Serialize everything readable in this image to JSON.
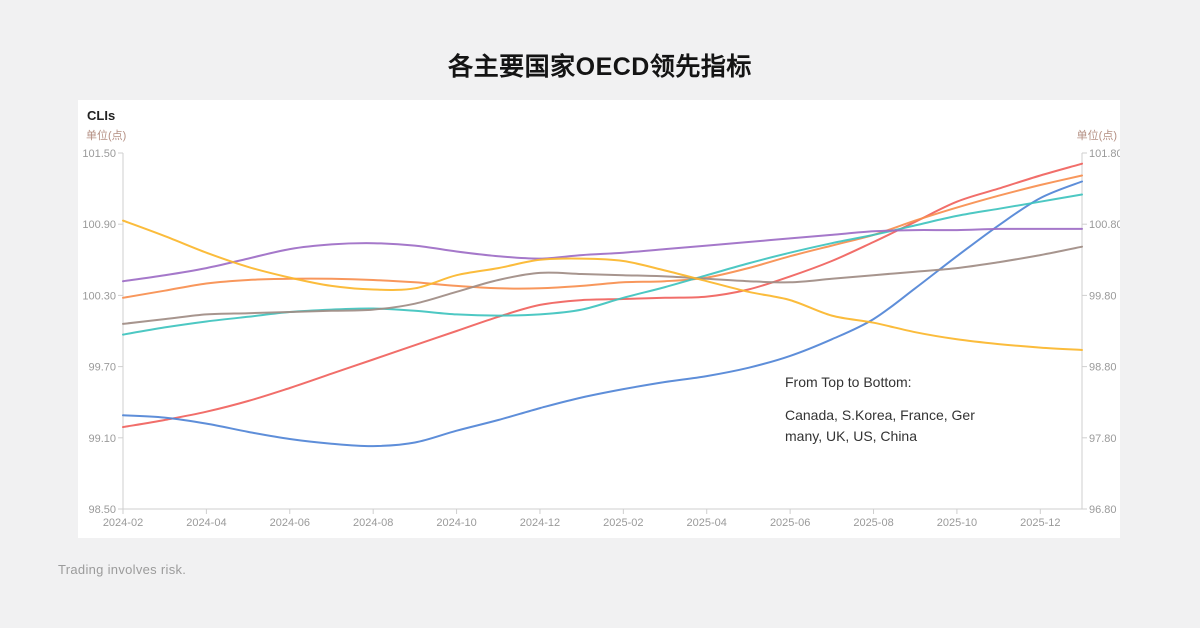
{
  "page": {
    "title": "各主要国家OECD领先指标",
    "footer": "Trading involves risk."
  },
  "panel": {
    "heading": "CLIs",
    "unit_left": "单位(点)",
    "unit_right": "单位(点)"
  },
  "annotation": {
    "intro": "From Top to Bottom:",
    "countries": "Canada, S.Korea, France, Germany, UK, US, China"
  },
  "chart_data": {
    "type": "line",
    "title": "各主要国家OECD领先指标",
    "grid": false,
    "legend_position": "none",
    "x": [
      "2024-02",
      "2024-03",
      "2024-04",
      "2024-05",
      "2024-06",
      "2024-07",
      "2024-08",
      "2024-09",
      "2024-10",
      "2024-11",
      "2024-12",
      "2025-01",
      "2025-02",
      "2025-03",
      "2025-04",
      "2025-05",
      "2025-06",
      "2025-07",
      "2025-08",
      "2025-09",
      "2025-10",
      "2025-11",
      "2025-12",
      "2026-01"
    ],
    "x_tick_labels": [
      "2024-02",
      "2024-04",
      "2024-06",
      "2024-08",
      "2024-10",
      "2024-12",
      "2025-02",
      "2025-04",
      "2025-06",
      "2025-08",
      "2025-10",
      "2025-12"
    ],
    "left_axis": {
      "label": "单位(点)",
      "range": [
        98.5,
        101.5
      ],
      "tick_labels": [
        "101.50",
        "100.90",
        "100.30",
        "99.70",
        "99.10",
        "98.50"
      ]
    },
    "right_axis": {
      "label": "单位(点)",
      "range": [
        96.8,
        101.8
      ],
      "tick_labels": [
        "101.80",
        "100.80",
        "99.80",
        "98.80",
        "97.80",
        "96.80"
      ]
    },
    "axis_color": "#cfcfcf",
    "tick_text_color": "#9a9a9a",
    "series": [
      {
        "name": "Canada",
        "color": "#F0625D",
        "values": [
          99.19,
          99.25,
          99.32,
          99.41,
          99.52,
          99.64,
          99.76,
          99.88,
          100.0,
          100.12,
          100.22,
          100.26,
          100.27,
          100.28,
          100.29,
          100.35,
          100.46,
          100.59,
          100.75,
          100.92,
          101.09,
          101.2,
          101.31,
          101.41
        ]
      },
      {
        "name": "S.Korea",
        "color": "#F78E4E",
        "values": [
          100.28,
          100.34,
          100.4,
          100.43,
          100.44,
          100.44,
          100.43,
          100.41,
          100.38,
          100.36,
          100.36,
          100.38,
          100.41,
          100.42,
          100.45,
          100.53,
          100.63,
          100.72,
          100.81,
          100.93,
          101.04,
          101.14,
          101.23,
          101.31
        ]
      },
      {
        "name": "France",
        "color": "#5084D6",
        "values": [
          99.29,
          99.27,
          99.22,
          99.15,
          99.09,
          99.05,
          99.03,
          99.06,
          99.16,
          99.25,
          99.35,
          99.44,
          99.51,
          99.57,
          99.62,
          99.69,
          99.79,
          99.93,
          100.1,
          100.36,
          100.63,
          100.89,
          101.12,
          101.26
        ]
      },
      {
        "name": "Germany",
        "color": "#3EC3BE",
        "values": [
          99.97,
          100.03,
          100.08,
          100.12,
          100.16,
          100.18,
          100.19,
          100.17,
          100.14,
          100.13,
          100.14,
          100.18,
          100.28,
          100.37,
          100.47,
          100.57,
          100.66,
          100.74,
          100.81,
          100.89,
          100.97,
          101.03,
          101.09,
          101.15
        ]
      },
      {
        "name": "UK",
        "color": "#9D6CC6",
        "values": [
          100.42,
          100.47,
          100.53,
          100.61,
          100.69,
          100.73,
          100.74,
          100.72,
          100.67,
          100.63,
          100.61,
          100.64,
          100.66,
          100.69,
          100.72,
          100.75,
          100.78,
          100.81,
          100.84,
          100.85,
          100.85,
          100.86,
          100.86,
          100.86
        ]
      },
      {
        "name": "US",
        "color": "#A08C84",
        "values": [
          100.06,
          100.1,
          100.14,
          100.15,
          100.16,
          100.17,
          100.18,
          100.23,
          100.33,
          100.43,
          100.49,
          100.48,
          100.47,
          100.46,
          100.44,
          100.42,
          100.41,
          100.44,
          100.47,
          100.5,
          100.53,
          100.58,
          100.64,
          100.71
        ]
      },
      {
        "name": "China",
        "color": "#FBB62B",
        "values": [
          100.93,
          100.8,
          100.66,
          100.54,
          100.45,
          100.38,
          100.35,
          100.36,
          100.47,
          100.53,
          100.6,
          100.61,
          100.59,
          100.51,
          100.42,
          100.33,
          100.26,
          100.13,
          100.07,
          99.99,
          99.93,
          99.89,
          99.86,
          99.84
        ]
      }
    ],
    "legend_note": "From Top to Bottom: Canada, S.Korea, France, Germany, UK, US, China"
  }
}
